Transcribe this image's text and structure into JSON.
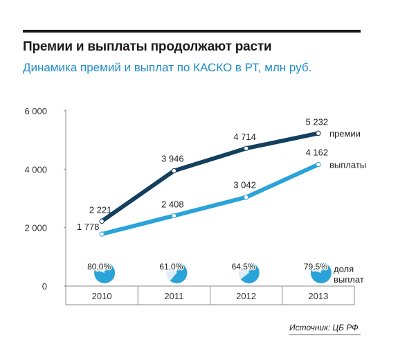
{
  "header": {
    "title": "Премии и выплаты продолжают расти",
    "subtitle": "Динамика премий и выплат по КАСКО в РТ, млн руб."
  },
  "source": "Источник: ЦБ РФ",
  "colors": {
    "premiums": "#13405e",
    "payouts": "#2aa3d8",
    "pie": "#2aa3d8",
    "axis": "#888888"
  },
  "chart_data": {
    "type": "line",
    "categories": [
      "2010",
      "2011",
      "2012",
      "2013"
    ],
    "ylim": [
      0,
      6000
    ],
    "yticks": [
      0,
      2000,
      4000,
      6000
    ],
    "ytick_labels": [
      "0",
      "2 000",
      "4 000",
      "6 000"
    ],
    "series": [
      {
        "name": "премии",
        "values": [
          2221,
          3946,
          4714,
          5232
        ],
        "labels": [
          "2 221",
          "3 946",
          "4 714",
          "5 232"
        ]
      },
      {
        "name": "выплаты",
        "values": [
          1778,
          2408,
          3042,
          4162
        ],
        "labels": [
          "1 778",
          "2 408",
          "3 042",
          "4 162"
        ]
      }
    ],
    "payout_share": {
      "name": "доля выплат",
      "values": [
        80.0,
        61.0,
        64.5,
        79.5
      ],
      "labels": [
        "80,0%",
        "61,0%",
        "64,5%",
        "79,5%"
      ]
    }
  }
}
